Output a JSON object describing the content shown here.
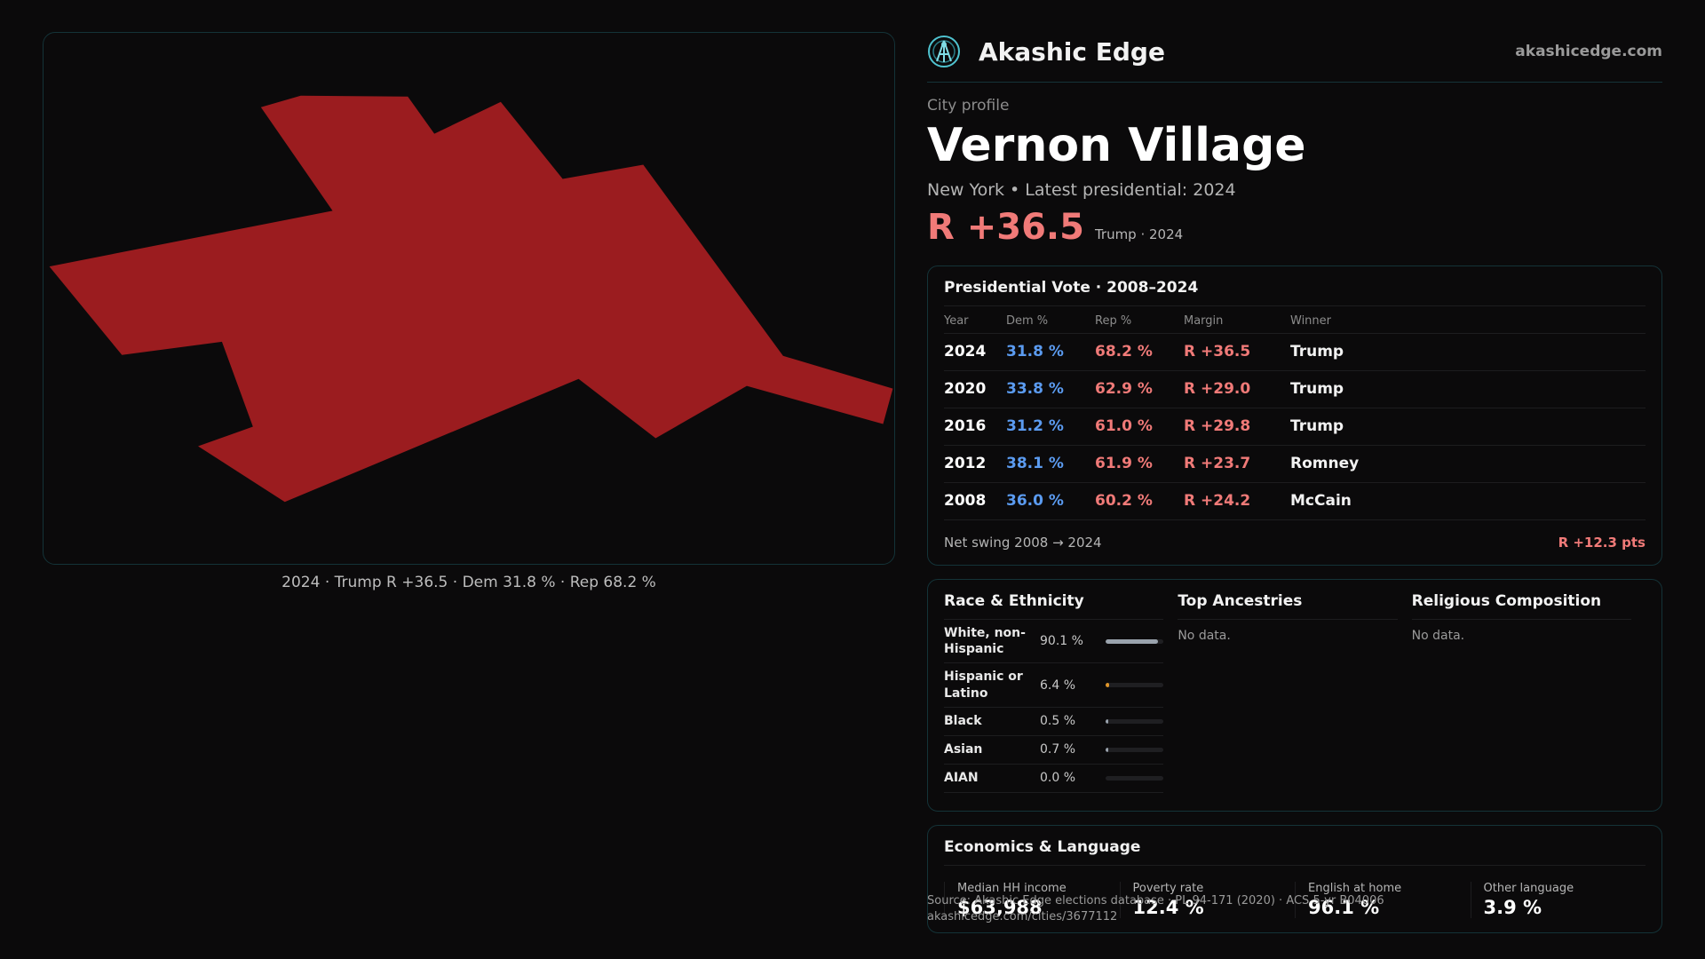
{
  "map": {
    "fill_color": "#9b1c1f",
    "caption": "2024 · Trump R +36.5 · Dem 31.8 % · Rep 68.2 %"
  },
  "header": {
    "brand": "Akashic Edge",
    "url": "akashicedge.com"
  },
  "profile": {
    "eyebrow": "City profile",
    "title": "Vernon Village",
    "subline": "New York  • Latest presidential: 2024",
    "margin": "R +36.5",
    "margin_note": "Trump · 2024"
  },
  "presidential": {
    "title": "Presidential Vote · 2008–2024",
    "headers": [
      "Year",
      "Dem %",
      "Rep %",
      "Margin",
      "Winner"
    ],
    "rows": [
      {
        "year": "2024",
        "dem": "31.8 %",
        "rep": "68.2 %",
        "margin": "R +36.5",
        "winner": "Trump"
      },
      {
        "year": "2020",
        "dem": "33.8 %",
        "rep": "62.9 %",
        "margin": "R +29.0",
        "winner": "Trump"
      },
      {
        "year": "2016",
        "dem": "31.2 %",
        "rep": "61.0 %",
        "margin": "R +29.8",
        "winner": "Trump"
      },
      {
        "year": "2012",
        "dem": "38.1 %",
        "rep": "61.9 %",
        "margin": "R +23.7",
        "winner": "Romney"
      },
      {
        "year": "2008",
        "dem": "36.0 %",
        "rep": "60.2 %",
        "margin": "R +24.2",
        "winner": "McCain"
      }
    ],
    "swing_label": "Net swing 2008 → 2024",
    "swing_value": "R +12.3 pts"
  },
  "demographics": {
    "race_title": "Race & Ethnicity",
    "race": [
      {
        "label": "White, non-Hispanic",
        "value": "90.1 %",
        "fraction": 0.901,
        "color": "#9aa3ad"
      },
      {
        "label": "Hispanic or Latino",
        "value": "6.4 %",
        "fraction": 0.064,
        "color": "#e0962a"
      },
      {
        "label": "Black",
        "value": "0.5 %",
        "fraction": 0.005,
        "color": "#9aa3ad"
      },
      {
        "label": "Asian",
        "value": "0.7 %",
        "fraction": 0.007,
        "color": "#9aa3ad"
      },
      {
        "label": "AIAN",
        "value": "0.0 %",
        "fraction": 0.0,
        "color": "#9aa3ad"
      }
    ],
    "ancestry_title": "Top Ancestries",
    "ancestry_empty": "No data.",
    "religion_title": "Religious Composition",
    "religion_empty": "No data."
  },
  "economics": {
    "title": "Economics & Language",
    "cells": [
      {
        "label": "Median HH income",
        "value": "$63,988"
      },
      {
        "label": "Poverty rate",
        "value": "12.4 %"
      },
      {
        "label": "English at home",
        "value": "96.1 %"
      },
      {
        "label": "Other language",
        "value": "3.9 %"
      }
    ]
  },
  "source": {
    "line1": "Source: Akashic Edge elections database · PL 94-171 (2020) · ACS 5-yr B04006",
    "line2": "akashicedge.com/cities/3677112"
  }
}
